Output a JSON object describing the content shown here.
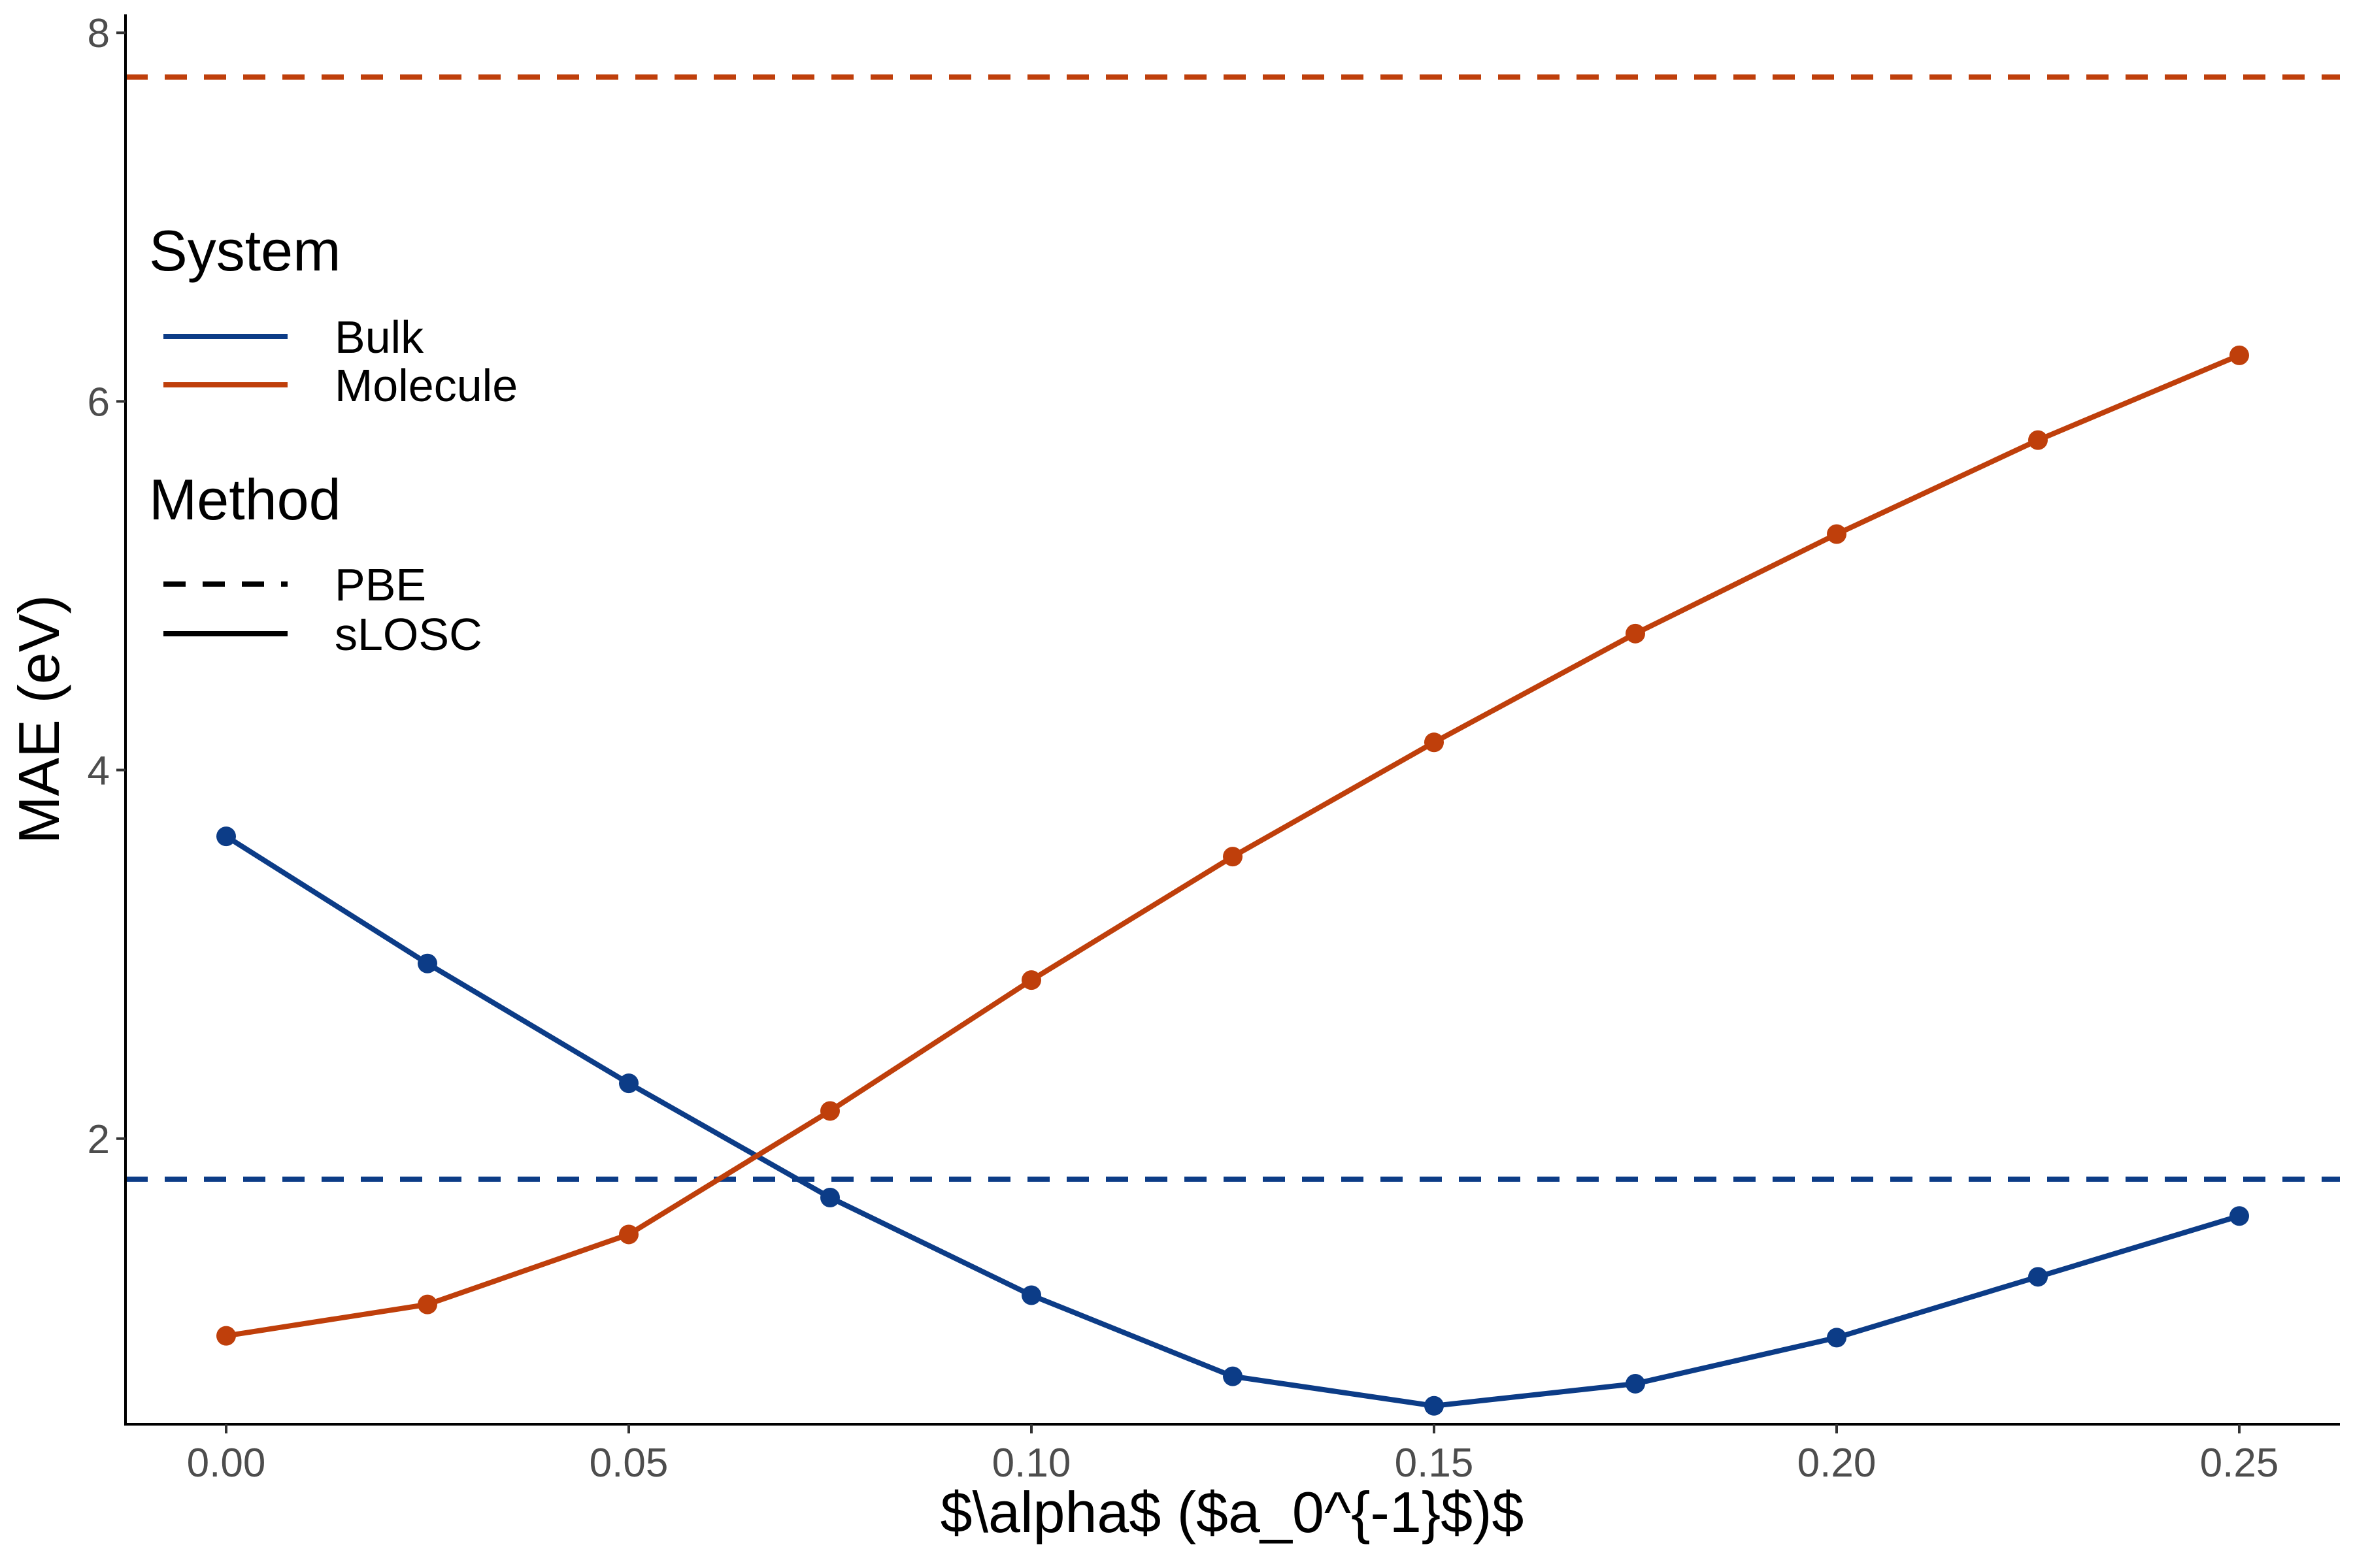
{
  "chart_data": {
    "type": "line",
    "xlabel": "$\\alpha$ ($a_0^{-1}$)$",
    "ylabel": "MAE (eV)",
    "x": [
      0.0,
      0.025,
      0.05,
      0.075,
      0.1,
      0.125,
      0.15,
      0.175,
      0.2,
      0.225,
      0.25
    ],
    "xlim": [
      -0.0125,
      0.2625
    ],
    "ylim": [
      0.45,
      8.1
    ],
    "x_ticks": [
      {
        "value": 0.0,
        "label": "0.00"
      },
      {
        "value": 0.05,
        "label": "0.05"
      },
      {
        "value": 0.1,
        "label": "0.10"
      },
      {
        "value": 0.15,
        "label": "0.15"
      },
      {
        "value": 0.2,
        "label": "0.20"
      },
      {
        "value": 0.25,
        "label": "0.25"
      }
    ],
    "y_ticks": [
      {
        "value": 2,
        "label": "2"
      },
      {
        "value": 4,
        "label": "4"
      },
      {
        "value": 6,
        "label": "6"
      },
      {
        "value": 8,
        "label": "8"
      }
    ],
    "grid": false,
    "legend_position": "top-left",
    "series": [
      {
        "name": "Bulk",
        "method": "sLOSC",
        "color": "#0c3c87",
        "values": [
          3.64,
          2.95,
          2.3,
          1.68,
          1.15,
          0.71,
          0.55,
          0.67,
          0.92,
          1.25,
          1.58
        ]
      },
      {
        "name": "Molecule",
        "method": "sLOSC",
        "color": "#bf3f0b",
        "values": [
          0.93,
          1.1,
          1.48,
          2.15,
          2.86,
          3.53,
          4.15,
          4.74,
          5.28,
          5.79,
          6.25
        ]
      }
    ],
    "reference_lines": [
      {
        "system": "Bulk",
        "method": "PBE",
        "color": "#0c3c87",
        "value": 1.78
      },
      {
        "system": "Molecule",
        "method": "PBE",
        "color": "#bf3f0b",
        "value": 7.76
      }
    ],
    "legend": {
      "system_title": "System",
      "system_items": [
        {
          "label": "Bulk",
          "color": "#0c3c87"
        },
        {
          "label": "Molecule",
          "color": "#bf3f0b"
        }
      ],
      "method_title": "Method",
      "method_items": [
        {
          "label": "PBE",
          "style": "dashed"
        },
        {
          "label": "sLOSC",
          "style": "solid"
        }
      ]
    }
  }
}
